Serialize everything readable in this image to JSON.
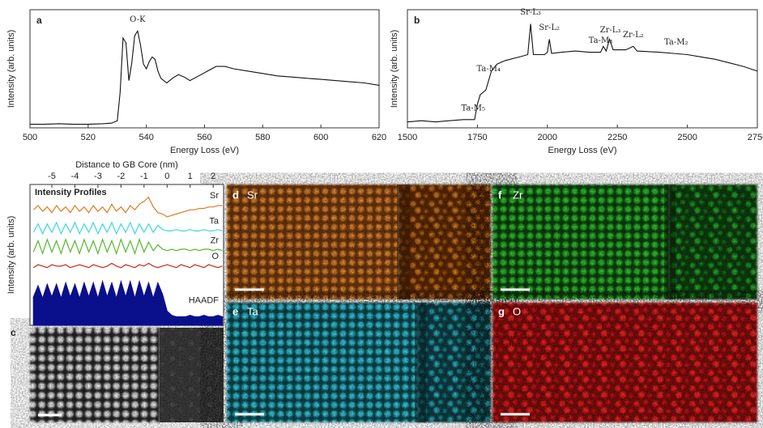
{
  "chart_data": [
    {
      "type": "line",
      "panel_label": "a",
      "xlabel": "Energy Loss (eV)",
      "ylabel": "Intensity (arb. units)",
      "color": "#111111",
      "annotations": [
        {
          "text": "O-K",
          "x": 537
        }
      ],
      "x": [
        500,
        505,
        510,
        515,
        520,
        525,
        528,
        530,
        531,
        532,
        533,
        534,
        535,
        536,
        537,
        538,
        539,
        540,
        541,
        542,
        543,
        544,
        545,
        547,
        549,
        551,
        553,
        555,
        558,
        561,
        564,
        567,
        570,
        575,
        580,
        585,
        590,
        595,
        600,
        605,
        610,
        615,
        620
      ],
      "values": [
        3,
        3,
        3.5,
        3,
        3,
        3.5,
        4,
        6,
        30,
        76,
        72,
        40,
        55,
        78,
        82,
        70,
        54,
        50,
        56,
        60,
        58,
        48,
        42,
        38,
        42,
        45,
        43,
        40,
        44,
        48,
        52,
        52,
        50,
        48,
        46,
        44,
        43,
        42,
        41,
        40,
        39,
        38,
        36
      ],
      "xlim": [
        500,
        620
      ],
      "xticks": [
        500,
        520,
        540,
        560,
        580,
        600,
        620
      ],
      "ylim": [
        0,
        100
      ]
    },
    {
      "type": "line",
      "panel_label": "b",
      "xlabel": "Energy Loss (eV)",
      "ylabel": "Intensity (arb. units)",
      "color": "#111111",
      "annotations": [
        {
          "text": "Ta-M₅",
          "x": 1735
        },
        {
          "text": "Ta-M₄",
          "x": 1790
        },
        {
          "text": "Sr-L₃",
          "x": 1940
        },
        {
          "text": "Sr-L₂",
          "x": 2007
        },
        {
          "text": "Ta-M₃",
          "x": 2190
        },
        {
          "text": "Zr-L₃",
          "x": 2225
        },
        {
          "text": "Zr-L₂",
          "x": 2307
        },
        {
          "text": "Ta-M₂",
          "x": 2460
        }
      ],
      "x": [
        1500,
        1550,
        1600,
        1650,
        1700,
        1740,
        1750,
        1760,
        1780,
        1800,
        1820,
        1850,
        1900,
        1930,
        1940,
        1950,
        1990,
        2000,
        2007,
        2015,
        2050,
        2100,
        2150,
        2190,
        2200,
        2210,
        2222,
        2235,
        2280,
        2307,
        2320,
        2400,
        2450,
        2500,
        2550,
        2600,
        2650,
        2700,
        2750
      ],
      "values": [
        5,
        6,
        5,
        6,
        7,
        7,
        20,
        28,
        32,
        48,
        54,
        57,
        60,
        62,
        88,
        62,
        62,
        64,
        75,
        63,
        64,
        65,
        64,
        64,
        69,
        65,
        75,
        66,
        66,
        69,
        65,
        64,
        63,
        62,
        60,
        58,
        55,
        52,
        48
      ],
      "xlim": [
        1500,
        2750
      ],
      "xticks": [
        1500,
        1750,
        2000,
        2250,
        2500,
        2750
      ],
      "ylim": [
        0,
        100
      ]
    },
    {
      "type": "profile",
      "title": "Intensity Profiles",
      "xlabel": "Distance to GB Core (nm)",
      "ylabel": "Intensity (arb. units)",
      "x": [
        -5.8,
        -5.6,
        -5.4,
        -5.2,
        -5.0,
        -4.8,
        -4.6,
        -4.4,
        -4.2,
        -4.0,
        -3.8,
        -3.6,
        -3.4,
        -3.2,
        -3.0,
        -2.8,
        -2.6,
        -2.4,
        -2.2,
        -2.0,
        -1.8,
        -1.6,
        -1.4,
        -1.2,
        -1.0,
        -0.8,
        -0.6,
        -0.4,
        -0.2,
        0.0,
        0.2,
        0.4,
        0.6,
        0.8,
        1.0,
        1.2,
        1.4,
        1.6,
        1.8,
        2.0,
        2.2,
        2.4
      ],
      "series": [
        {
          "name": "Sr",
          "color": "#e07b20",
          "values": [
            82,
            85,
            81,
            84,
            80,
            85,
            81,
            84,
            80,
            85,
            81,
            84,
            80,
            85,
            81,
            84,
            80,
            86,
            81,
            84,
            80,
            85,
            82,
            86,
            88,
            91,
            84,
            80,
            79,
            77,
            78,
            79,
            80,
            81,
            82,
            82,
            83,
            83,
            84,
            84,
            85,
            85
          ]
        },
        {
          "name": "Ta",
          "color": "#3dd6e8",
          "values": [
            66,
            72,
            65,
            72,
            66,
            73,
            65,
            72,
            66,
            73,
            65,
            72,
            66,
            73,
            65,
            72,
            66,
            73,
            65,
            72,
            66,
            73,
            65,
            72,
            66,
            72,
            66,
            71,
            68,
            67,
            67,
            68,
            67,
            67,
            68,
            67,
            67,
            68,
            67,
            67,
            68,
            67
          ]
        },
        {
          "name": "Zr",
          "color": "#55b82a",
          "values": [
            52,
            60,
            51,
            61,
            52,
            60,
            51,
            61,
            52,
            60,
            51,
            61,
            52,
            60,
            51,
            61,
            52,
            60,
            51,
            61,
            52,
            60,
            51,
            61,
            52,
            59,
            53,
            57,
            54,
            53,
            54,
            53,
            54,
            54,
            53,
            54,
            53,
            54,
            54,
            53,
            54,
            53
          ]
        },
        {
          "name": "O",
          "color": "#c8281e",
          "values": [
            41,
            43,
            42,
            41,
            43,
            42,
            42,
            43,
            41,
            42,
            43,
            42,
            41,
            43,
            42,
            41,
            42,
            44,
            42,
            41,
            43,
            42,
            41,
            43,
            42,
            44,
            42,
            41,
            42,
            43,
            42,
            41,
            43,
            42,
            41,
            43,
            42,
            41,
            43,
            42,
            41,
            42
          ]
        },
        {
          "name": "HAADF",
          "color": "#0a0f8c",
          "area": true,
          "values": [
            20,
            28,
            19,
            29,
            20,
            29,
            19,
            30,
            20,
            29,
            19,
            30,
            20,
            30,
            19,
            31,
            20,
            30,
            19,
            31,
            20,
            31,
            19,
            31,
            20,
            30,
            19,
            30,
            22,
            10,
            7,
            6,
            6,
            6,
            7,
            6,
            6,
            7,
            6,
            6,
            7,
            6
          ]
        }
      ],
      "xlim": [
        -5.95,
        2.45
      ],
      "xticks": [
        -5,
        -4,
        -3,
        -2,
        -1,
        0,
        1,
        2
      ],
      "ylim": [
        0,
        100
      ]
    }
  ],
  "image_panels": [
    {
      "label": "c"
    },
    {
      "label": "d",
      "element": "Sr"
    },
    {
      "label": "e",
      "element": "Ta"
    },
    {
      "label": "f",
      "element": "Zr"
    },
    {
      "label": "g",
      "element": "O"
    }
  ]
}
